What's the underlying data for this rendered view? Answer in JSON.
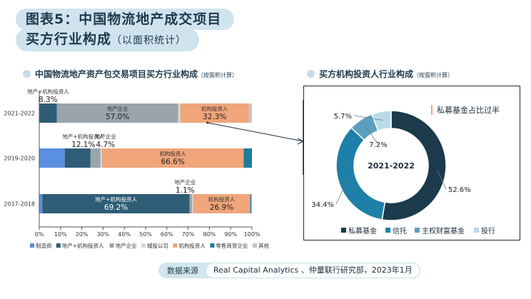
{
  "header": {
    "title_line1": "图表5：中国物流地产成交项目",
    "title_line2": "买方行业构成",
    "title_line2_sub": "（以面积统计）"
  },
  "left": {
    "title": "中国物流地产资产包交易项目买方行业构成",
    "title_note": "（按面积计算）"
  },
  "right": {
    "title": "买方机构投资人行业构成",
    "title_note": "（按面积计算）",
    "callout": "私募基金占比过半",
    "center_label": "2021-2022"
  },
  "source": {
    "label": "数据来源",
    "text": "Real Capital Analytics 、仲量联行研究部，2023年1月"
  },
  "chart_data": [
    {
      "type": "bar",
      "orientation": "horizontal",
      "stacked": true,
      "categories": [
        "2021-2022",
        "2019-2020",
        "2017-2018"
      ],
      "xlim": [
        0,
        100
      ],
      "x_ticks": [
        "0%",
        "10%",
        "20%",
        "30%",
        "40%",
        "50%",
        "60%",
        "70%",
        "80%",
        "90%",
        "100%"
      ],
      "grid": false,
      "legend_position": "bottom",
      "series": [
        {
          "name": "制造商",
          "color": "#5b8fe0",
          "values": [
            0,
            12,
            1.5
          ]
        },
        {
          "name": "地产+机构投资人",
          "color": "#2e5d75",
          "values": [
            8.3,
            12.1,
            69.2
          ]
        },
        {
          "name": "地产企业",
          "color": "#9aa5ab",
          "values": [
            57,
            4.7,
            1.1
          ]
        },
        {
          "name": "城投公司",
          "color": "#d5d8da",
          "values": [
            1,
            0.7,
            0.5
          ]
        },
        {
          "name": "机构投资人",
          "color": "#f0a57a",
          "values": [
            32.3,
            66.6,
            26.9
          ]
        },
        {
          "name": "零售商贸企业",
          "color": "#1a7d99",
          "values": [
            0,
            3.9,
            0.5
          ]
        },
        {
          "name": "其他",
          "color": "#bcc7cc",
          "values": [
            1.4,
            0,
            0.3
          ]
        }
      ],
      "annotations": [
        {
          "category": "2021-2022",
          "series": "地产+机构投资人",
          "name_text": "地产+机构投资人",
          "value_text": "8.3%"
        },
        {
          "category": "2021-2022",
          "series": "地产企业",
          "name_text": "地产企业",
          "value_text": "57.0%"
        },
        {
          "category": "2021-2022",
          "series": "机构投资人",
          "name_text": "机构投资人",
          "value_text": "32.3%"
        },
        {
          "category": "2019-2020",
          "series": "地产+机构投资人",
          "name_text": "地产+机构投资人",
          "value_text": "12.1%"
        },
        {
          "category": "2019-2020",
          "series": "地产企业",
          "name_text": "地产企业",
          "value_text": "4.7%"
        },
        {
          "category": "2019-2020",
          "series": "机构投资人",
          "name_text": "机构投资人",
          "value_text": "66.6%"
        },
        {
          "category": "2017-2018",
          "series": "地产企业",
          "name_text": "地产企业",
          "value_text": "1.1%"
        },
        {
          "category": "2017-2018",
          "series": "地产+机构投资人",
          "name_text": "地产+机构投资人",
          "value_text": "69.2%"
        },
        {
          "category": "2017-2018",
          "series": "机构投资人",
          "name_text": "机构投资人",
          "value_text": "26.9%"
        }
      ]
    },
    {
      "type": "pie",
      "donut": true,
      "categories": [
        "私募基金",
        "信托",
        "主权财富基金",
        "投行"
      ],
      "values": [
        52.6,
        34.4,
        7.2,
        5.7
      ],
      "value_labels": [
        "52.6%",
        "34.4%",
        "7.2%",
        "5.7%"
      ],
      "colors": [
        "#1b3a4b",
        "#1e7fa8",
        "#5b9fbe",
        "#b9dbe8"
      ],
      "center_label": "2021-2022",
      "legend_position": "bottom"
    }
  ]
}
